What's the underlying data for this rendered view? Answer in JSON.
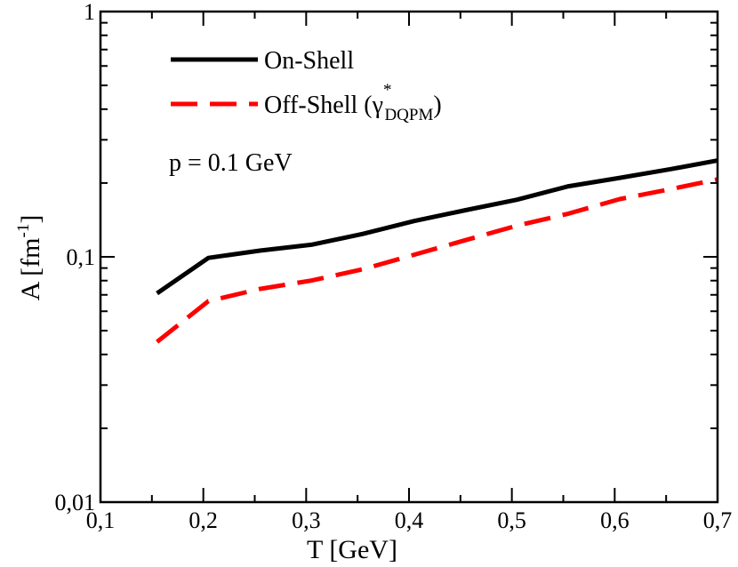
{
  "chart_data": {
    "type": "line",
    "xlabel": "T [GeV]",
    "ylabel": "A [fm",
    "ylabel_sup": "-1",
    "ylabel_close": "]",
    "xlim": [
      0.1,
      0.7
    ],
    "ylim": [
      0.01,
      1
    ],
    "yscale": "log",
    "grid": false,
    "legend_position": "top-left",
    "x_ticks": [
      "0,1",
      "0,2",
      "0,3",
      "0,4",
      "0,5",
      "0,6",
      "0,7"
    ],
    "y_ticks": [
      "0,01",
      "0,1",
      "1"
    ],
    "annotation": "p = 0.1 GeV",
    "series": [
      {
        "name": "On-Shell",
        "color": "#000000",
        "style": "solid",
        "x": [
          0.155,
          0.205,
          0.255,
          0.305,
          0.355,
          0.405,
          0.455,
          0.505,
          0.555,
          0.605,
          0.655,
          0.7
        ],
        "y": [
          0.071,
          0.099,
          0.106,
          0.112,
          0.124,
          0.14,
          0.155,
          0.171,
          0.194,
          0.21,
          0.228,
          0.247
        ]
      },
      {
        "name": "Off-Shell (γ",
        "name_sup": "*",
        "name_sub": "DQPM",
        "name_close": ")",
        "color": "#ff0000",
        "style": "dashed",
        "x": [
          0.155,
          0.205,
          0.255,
          0.305,
          0.355,
          0.405,
          0.455,
          0.505,
          0.555,
          0.605,
          0.655,
          0.7
        ],
        "y": [
          0.045,
          0.066,
          0.074,
          0.08,
          0.089,
          0.102,
          0.117,
          0.134,
          0.15,
          0.172,
          0.189,
          0.207
        ]
      }
    ]
  }
}
